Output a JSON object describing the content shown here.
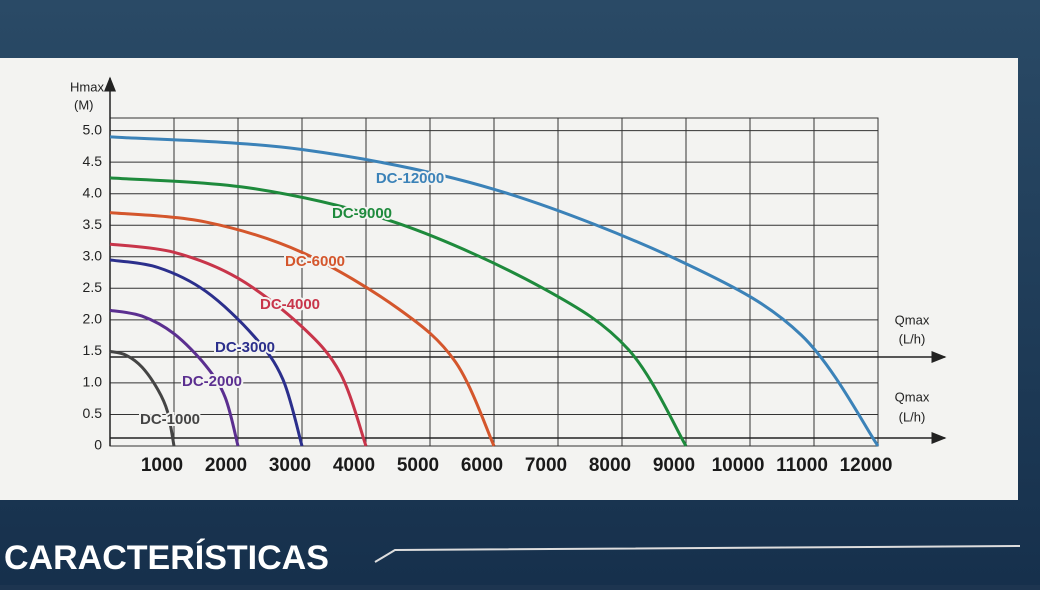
{
  "chart_data": {
    "type": "line",
    "y_label": "Hmax",
    "y_unit": "(M)",
    "x_label": "Qmax",
    "x_unit": "(L/h)",
    "xlim": [
      0,
      12000
    ],
    "ylim": [
      0,
      5.2
    ],
    "xticks": [
      1000,
      2000,
      3000,
      4000,
      5000,
      6000,
      7000,
      8000,
      9000,
      10000,
      11000,
      12000
    ],
    "yticks": [
      0,
      0.5,
      {
        "value": 1,
        "label": "1.0"
      },
      1.5,
      {
        "value": 2,
        "label": "2.0"
      },
      2.5,
      {
        "value": 3,
        "label": "3.0"
      },
      3.5,
      {
        "value": 4,
        "label": "4.0"
      },
      4.5,
      {
        "value": 5,
        "label": "5.0"
      }
    ],
    "grid": true,
    "series": [
      {
        "name": "DC-12000",
        "color": "#3b82b8",
        "x": [
          0,
          3000,
          6000,
          9000,
          10800,
          12000
        ],
        "values": [
          4.9,
          4.7,
          4.07,
          2.89,
          1.76,
          0
        ]
      },
      {
        "name": "DC-9000",
        "color": "#1e8a3c",
        "x": [
          0,
          2250,
          4500,
          6750,
          8100,
          9000
        ],
        "values": [
          4.25,
          4.08,
          3.53,
          2.51,
          1.53,
          0
        ]
      },
      {
        "name": "DC-6000",
        "color": "#d4562c",
        "x": [
          0,
          1500,
          3000,
          4500,
          5400,
          6000
        ],
        "values": [
          3.7,
          3.55,
          3.07,
          2.18,
          1.33,
          0
        ]
      },
      {
        "name": "DC-4000",
        "color": "#c8354a",
        "x": [
          0,
          1000,
          2000,
          3000,
          3600,
          4000
        ],
        "values": [
          3.2,
          3.07,
          2.66,
          1.89,
          1.15,
          0
        ]
      },
      {
        "name": "DC-3000",
        "color": "#2b2f8c",
        "x": [
          0,
          750,
          1500,
          2250,
          2700,
          3000
        ],
        "values": [
          2.95,
          2.83,
          2.45,
          1.74,
          1.06,
          0
        ]
      },
      {
        "name": "DC-2000",
        "color": "#5b2f90",
        "x": [
          0,
          500,
          1000,
          1500,
          1800,
          2000
        ],
        "values": [
          2.15,
          2.06,
          1.78,
          1.27,
          0.77,
          0
        ]
      },
      {
        "name": "DC-1000",
        "color": "#444444",
        "x": [
          0,
          250,
          500,
          750,
          900,
          1000
        ],
        "values": [
          1.5,
          1.44,
          1.25,
          0.89,
          0.54,
          0
        ]
      }
    ]
  },
  "footer": "CARACTERÍSTICAS"
}
